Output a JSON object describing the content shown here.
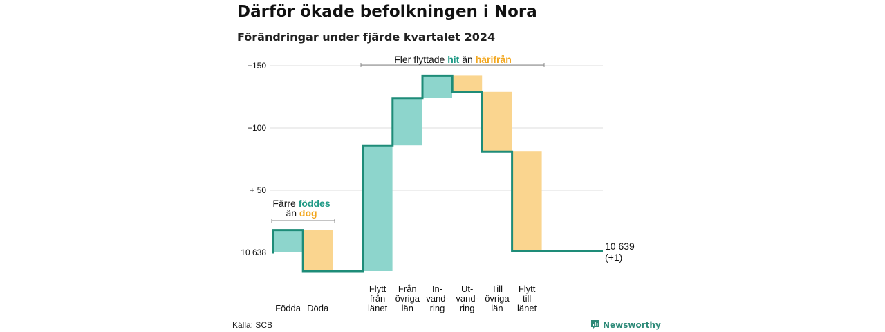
{
  "title": "Därför ökade befolkningen i Nora",
  "subtitle": "Förändringar under fjärde kvartalet 2024",
  "source": "Källa: SCB",
  "brand": "Newsworthy",
  "colors": {
    "increase_fill": "#8dd5cc",
    "decrease_fill": "#fad58f",
    "line": "#1e8c78",
    "increase_text": "#1f9a86",
    "decrease_text": "#f2a61d",
    "grid": "#dddddd"
  },
  "annotations": {
    "births_deaths": {
      "line1": "Färre",
      "hl1": "föddes",
      "line2": "än",
      "hl2": "dog"
    },
    "migration": {
      "pre": "Fler flyttade",
      "hl1": "hit",
      "mid": "än",
      "hl2": "härifrån"
    }
  },
  "end_label": {
    "value": "10 639",
    "change": "(+1)"
  },
  "chart_data": {
    "type": "waterfall",
    "baseline": 10638,
    "y_axis": {
      "min": -22,
      "max": 152,
      "ticks": [
        0,
        50,
        100,
        150
      ],
      "tick_labels": [
        "10 638",
        "+ 50",
        "+100",
        "+150"
      ]
    },
    "categories": [
      {
        "label": [
          "Födda"
        ],
        "value": 18
      },
      {
        "label": [
          "Döda"
        ],
        "value": -33
      },
      {
        "label": [
          "Flytt",
          "från",
          "länet"
        ],
        "value": 101
      },
      {
        "label": [
          "Från",
          "övriga",
          "län"
        ],
        "value": 38
      },
      {
        "label": [
          "In-",
          "vand-",
          "ring"
        ],
        "value": 18
      },
      {
        "label": [
          "Ut-",
          "vand-",
          "ring"
        ],
        "value": -13
      },
      {
        "label": [
          "Till",
          "övriga",
          "län"
        ],
        "value": -48
      },
      {
        "label": [
          "Flytt",
          "till",
          "länet"
        ],
        "value": -80
      }
    ],
    "end_value": 1
  }
}
